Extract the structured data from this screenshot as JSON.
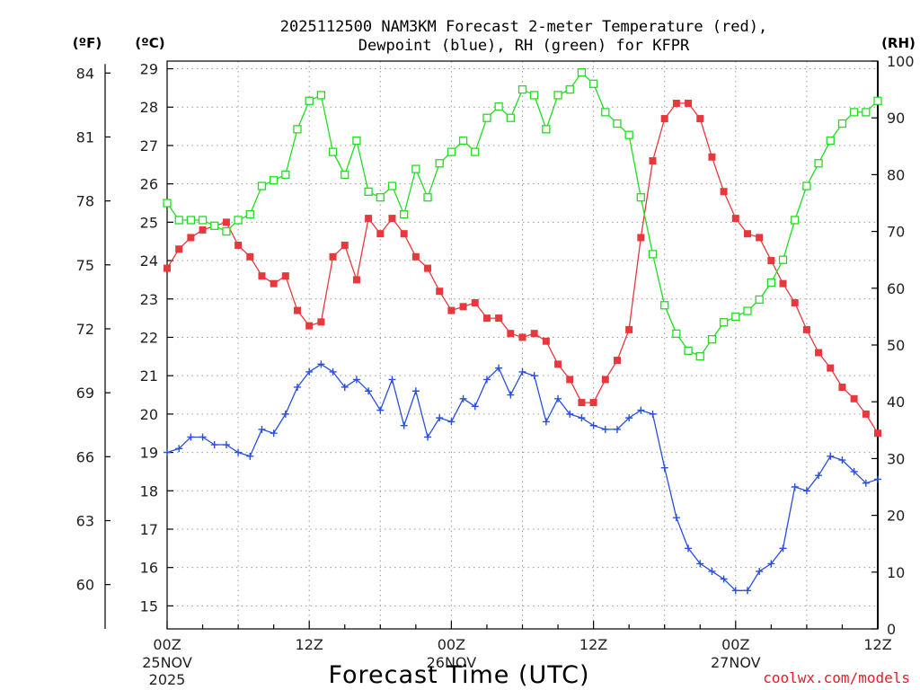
{
  "chart_data": {
    "type": "line",
    "title_line1": "2025112500 NAM3KM Forecast 2-meter Temperature (red),",
    "title_line2": "Dewpoint (blue), RH (green) for KFPR",
    "xlabel": "Forecast Time (UTC)",
    "credit": "coolwx.com/models",
    "units": {
      "fahrenheit": "(ºF)",
      "celsius": "(ºC)",
      "rh": "(RH)"
    },
    "x_range_hours": [
      0,
      60
    ],
    "y_celsius_range": [
      14.4,
      29.2
    ],
    "y_rh_range": [
      0,
      100
    ],
    "celsius_ticks": [
      15,
      16,
      17,
      18,
      19,
      20,
      21,
      22,
      23,
      24,
      25,
      26,
      27,
      28,
      29
    ],
    "fahrenheit_ticks": [
      60,
      63,
      66,
      69,
      72,
      75,
      78,
      81,
      84
    ],
    "rh_ticks": [
      0,
      10,
      20,
      30,
      40,
      50,
      60,
      70,
      80,
      90,
      100
    ],
    "x_ticks": [
      {
        "hour": 0,
        "label": "00Z",
        "date": "25NOV",
        "year": "2025"
      },
      {
        "hour": 12,
        "label": "12Z",
        "date": "",
        "year": ""
      },
      {
        "hour": 24,
        "label": "00Z",
        "date": "26NOV",
        "year": ""
      },
      {
        "hour": 36,
        "label": "12Z",
        "date": "",
        "year": ""
      },
      {
        "hour": 48,
        "label": "00Z",
        "date": "27NOV",
        "year": ""
      },
      {
        "hour": 60,
        "label": "12Z",
        "date": "",
        "year": ""
      }
    ],
    "hours": [
      0,
      1,
      2,
      3,
      4,
      5,
      6,
      7,
      8,
      9,
      10,
      11,
      12,
      13,
      14,
      15,
      16,
      17,
      18,
      19,
      20,
      21,
      22,
      23,
      24,
      25,
      26,
      27,
      28,
      29,
      30,
      31,
      32,
      33,
      34,
      35,
      36,
      37,
      38,
      39,
      40,
      41,
      42,
      43,
      44,
      45,
      46,
      47,
      48,
      49,
      50,
      51,
      52,
      53,
      54,
      55,
      56,
      57,
      58,
      59,
      60
    ],
    "series": [
      {
        "name": "2-meter Temperature",
        "axis": "celsius",
        "color": "#e8383d",
        "marker": "filled-square",
        "values": [
          23.8,
          24.3,
          24.6,
          24.8,
          24.9,
          25.0,
          24.4,
          24.1,
          23.6,
          23.4,
          23.6,
          22.7,
          22.3,
          22.4,
          24.1,
          24.4,
          23.5,
          25.1,
          24.7,
          25.1,
          24.7,
          24.1,
          23.8,
          23.2,
          22.7,
          22.8,
          22.9,
          22.5,
          22.5,
          22.1,
          22.0,
          22.1,
          21.9,
          21.3,
          20.9,
          20.3,
          20.3,
          20.9,
          21.4,
          22.2,
          24.6,
          26.6,
          27.7,
          28.1,
          28.1,
          27.7,
          26.7,
          25.8,
          25.1,
          24.7,
          24.6,
          24.0,
          23.4,
          22.9,
          22.2,
          21.6,
          21.2,
          20.7,
          20.4,
          20.0,
          19.5
        ]
      },
      {
        "name": "Dewpoint",
        "axis": "celsius",
        "color": "#2a4fe0",
        "marker": "plus",
        "values": [
          19.0,
          19.1,
          19.4,
          19.4,
          19.2,
          19.2,
          19.0,
          18.9,
          19.6,
          19.5,
          20.0,
          20.7,
          21.1,
          21.3,
          21.1,
          20.7,
          20.9,
          20.6,
          20.1,
          20.9,
          19.7,
          20.6,
          19.4,
          19.9,
          19.8,
          20.4,
          20.2,
          20.9,
          21.2,
          20.5,
          21.1,
          21.0,
          19.8,
          20.4,
          20.0,
          19.9,
          19.7,
          19.6,
          19.6,
          19.9,
          20.1,
          20.0,
          18.6,
          17.3,
          16.5,
          16.1,
          15.9,
          15.7,
          15.4,
          15.4,
          15.9,
          16.1,
          16.5,
          18.1,
          18.0,
          18.4,
          18.9,
          18.8,
          18.5,
          18.2,
          18.3
        ]
      },
      {
        "name": "RH",
        "axis": "rh",
        "color": "#22dd22",
        "marker": "open-square",
        "values": [
          75,
          72,
          72,
          72,
          71,
          70,
          72,
          73,
          78,
          79,
          80,
          88,
          93,
          94,
          84,
          80,
          86,
          77,
          76,
          78,
          73,
          81,
          76,
          82,
          84,
          86,
          84,
          90,
          92,
          90,
          95,
          94,
          88,
          94,
          95,
          98,
          96,
          91,
          89,
          87,
          76,
          66,
          57,
          52,
          49,
          48,
          51,
          54,
          55,
          56,
          58,
          61,
          65,
          72,
          78,
          82,
          86,
          89,
          91,
          91,
          93
        ]
      }
    ]
  }
}
